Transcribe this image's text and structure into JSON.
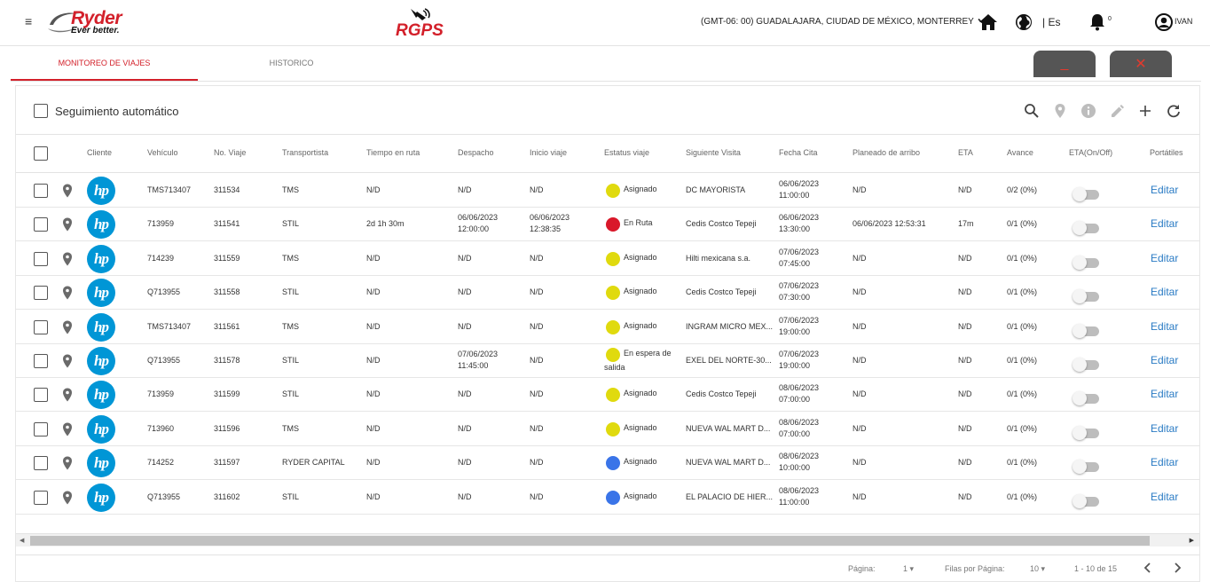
{
  "header": {
    "brand": "Ryder",
    "tagline": "Ever better.",
    "app_logo": "RGPS",
    "timezone": "(GMT-06: 00) GUADALAJARA, CIUDAD DE MÉXICO, MONTERREY",
    "language": "| Es",
    "notifications_count": "0",
    "user": "IVAN",
    "icons": [
      "hamburger-icon",
      "home-icon",
      "globe-icon",
      "bell-icon",
      "user-icon"
    ]
  },
  "tabs": [
    {
      "label": "MONITOREO DE VIAJES",
      "active": true
    },
    {
      "label": "HISTORICO",
      "active": false
    }
  ],
  "window_buttons": {
    "minimize": "_",
    "close": "✕"
  },
  "toolbar": {
    "auto_follow_label": "Seguimiento automático",
    "icons": [
      "search-icon",
      "location-pin-icon",
      "info-icon",
      "edit-pencil-icon",
      "plus-icon",
      "refresh-icon"
    ]
  },
  "table": {
    "columns": [
      "Cliente",
      "Vehículo",
      "No. Viaje",
      "Transportista",
      "Tiempo en ruta",
      "Despacho",
      "Inicio viaje",
      "Estatus viaje",
      "Siguiente Visita",
      "Fecha Cita",
      "Planeado de arribo",
      "ETA",
      "Avance",
      "ETA(On/Off)",
      "Portátiles"
    ],
    "client_logo": "hp",
    "edit_label": "Editar",
    "rows": [
      {
        "vehiculo": "TMS713407",
        "viaje": "311534",
        "transportista": "TMS",
        "tiempo": "N/D",
        "despacho": [
          "N/D"
        ],
        "inicio": [
          "N/D"
        ],
        "status_color": "#e0da0e",
        "estatus": [
          "Asignado"
        ],
        "siguiente": "DC MAYORISTA",
        "cita": [
          "06/06/2023",
          "11:00:00"
        ],
        "planeado": "N/D",
        "eta": "N/D",
        "avance": "0/2 (0%)"
      },
      {
        "vehiculo": "713959",
        "viaje": "311541",
        "transportista": "STIL",
        "tiempo": "2d 1h 30m",
        "despacho": [
          "06/06/2023",
          "12:00:00"
        ],
        "inicio": [
          "06/06/2023",
          "12:38:35"
        ],
        "status_color": "#d9182a",
        "estatus": [
          "En Ruta"
        ],
        "siguiente": "Cedis Costco Tepeji",
        "cita": [
          "06/06/2023",
          "13:30:00"
        ],
        "planeado": "06/06/2023 12:53:31",
        "eta": "17m",
        "avance": "0/1 (0%)"
      },
      {
        "vehiculo": "714239",
        "viaje": "311559",
        "transportista": "TMS",
        "tiempo": "N/D",
        "despacho": [
          "N/D"
        ],
        "inicio": [
          "N/D"
        ],
        "status_color": "#e0da0e",
        "estatus": [
          "Asignado"
        ],
        "siguiente": "Hilti mexicana s.a.",
        "cita": [
          "07/06/2023",
          "07:45:00"
        ],
        "planeado": "N/D",
        "eta": "N/D",
        "avance": "0/1 (0%)"
      },
      {
        "vehiculo": "Q713955",
        "viaje": "311558",
        "transportista": "STIL",
        "tiempo": "N/D",
        "despacho": [
          "N/D"
        ],
        "inicio": [
          "N/D"
        ],
        "status_color": "#e0da0e",
        "estatus": [
          "Asignado"
        ],
        "siguiente": "Cedis Costco Tepeji",
        "cita": [
          "07/06/2023",
          "07:30:00"
        ],
        "planeado": "N/D",
        "eta": "N/D",
        "avance": "0/1 (0%)"
      },
      {
        "vehiculo": "TMS713407",
        "viaje": "311561",
        "transportista": "TMS",
        "tiempo": "N/D",
        "despacho": [
          "N/D"
        ],
        "inicio": [
          "N/D"
        ],
        "status_color": "#e0da0e",
        "estatus": [
          "Asignado"
        ],
        "siguiente": "INGRAM MICRO MEX...",
        "cita": [
          "07/06/2023",
          "19:00:00"
        ],
        "planeado": "N/D",
        "eta": "N/D",
        "avance": "0/1 (0%)"
      },
      {
        "vehiculo": "Q713955",
        "viaje": "311578",
        "transportista": "STIL",
        "tiempo": "N/D",
        "despacho": [
          "07/06/2023",
          "11:45:00"
        ],
        "inicio": [
          "N/D"
        ],
        "status_color": "#e0da0e",
        "estatus": [
          "En espera de",
          "salida"
        ],
        "siguiente": "EXEL DEL NORTE-30...",
        "cita": [
          "07/06/2023",
          "19:00:00"
        ],
        "planeado": "N/D",
        "eta": "N/D",
        "avance": "0/1 (0%)"
      },
      {
        "vehiculo": "713959",
        "viaje": "311599",
        "transportista": "STIL",
        "tiempo": "N/D",
        "despacho": [
          "N/D"
        ],
        "inicio": [
          "N/D"
        ],
        "status_color": "#e0da0e",
        "estatus": [
          "Asignado"
        ],
        "siguiente": "Cedis Costco Tepeji",
        "cita": [
          "08/06/2023",
          "07:00:00"
        ],
        "planeado": "N/D",
        "eta": "N/D",
        "avance": "0/1 (0%)"
      },
      {
        "vehiculo": "713960",
        "viaje": "311596",
        "transportista": "TMS",
        "tiempo": "N/D",
        "despacho": [
          "N/D"
        ],
        "inicio": [
          "N/D"
        ],
        "status_color": "#e0da0e",
        "estatus": [
          "Asignado"
        ],
        "siguiente": "NUEVA WAL MART D...",
        "cita": [
          "08/06/2023",
          "07:00:00"
        ],
        "planeado": "N/D",
        "eta": "N/D",
        "avance": "0/1 (0%)"
      },
      {
        "vehiculo": "714252",
        "viaje": "311597",
        "transportista": "RYDER CAPITAL",
        "tiempo": "N/D",
        "despacho": [
          "N/D"
        ],
        "inicio": [
          "N/D"
        ],
        "status_color": "#3a74e8",
        "estatus": [
          "Asignado"
        ],
        "siguiente": "NUEVA WAL MART D...",
        "cita": [
          "08/06/2023",
          "10:00:00"
        ],
        "planeado": "N/D",
        "eta": "N/D",
        "avance": "0/1 (0%)"
      },
      {
        "vehiculo": "Q713955",
        "viaje": "311602",
        "transportista": "STIL",
        "tiempo": "N/D",
        "despacho": [
          "N/D"
        ],
        "inicio": [
          "N/D"
        ],
        "status_color": "#3a74e8",
        "estatus": [
          "Asignado"
        ],
        "siguiente": "EL PALACIO DE HIER...",
        "cita": [
          "08/06/2023",
          "11:00:00"
        ],
        "planeado": "N/D",
        "eta": "N/D",
        "avance": "0/1 (0%)"
      }
    ]
  },
  "pagination": {
    "page_label": "Página:",
    "page_value": "1",
    "rows_label": "Filas por Página:",
    "rows_value": "10",
    "range": "1 - 10 de 15"
  },
  "colors": {
    "brand_red": "#d3202a",
    "link_blue": "#2a7bc4",
    "hp_blue": "#0096d6"
  }
}
